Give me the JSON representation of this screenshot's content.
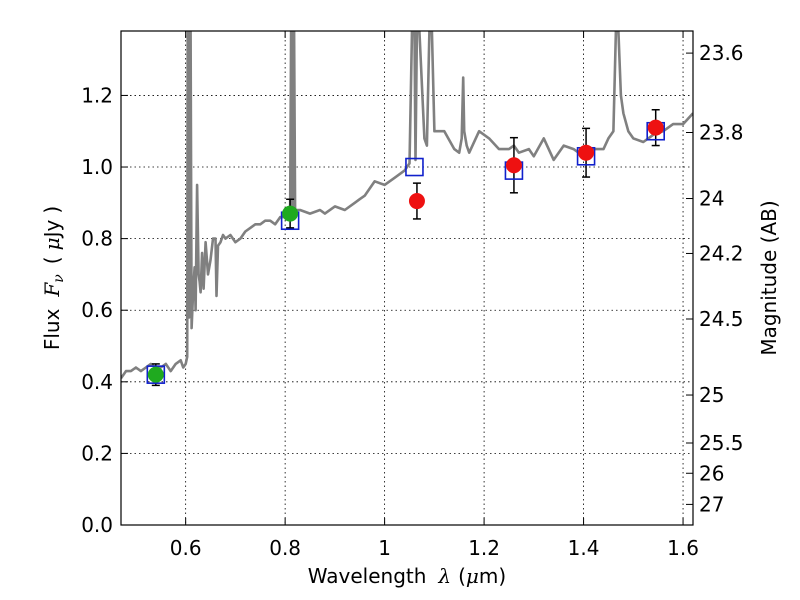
{
  "chart_data": {
    "type": "scatter",
    "xlabel_text": "Wavelength",
    "xlabel_symbol": "λ",
    "xlabel_unit_open": "(",
    "xlabel_unit_mu": "μ",
    "xlabel_unit_rest": "m)",
    "ylabel_text": "Flux",
    "ylabel_symbol": "F",
    "ylabel_sub": "ν",
    "ylabel_unit_open": "(",
    "ylabel_unit_mu": "μ",
    "ylabel_unit_rest": "Jy",
    "ylabel_unit_close": ")",
    "y2label": "Magnitude (AB)",
    "xlim": [
      0.47,
      1.62
    ],
    "ylim": [
      0.0,
      1.38
    ],
    "xticks": [
      0.6,
      0.8,
      1.0,
      1.2,
      1.4,
      1.6
    ],
    "xtick_labels": [
      "0.6",
      "0.8",
      "1",
      "1.2",
      "1.4",
      "1.6"
    ],
    "yticks": [
      0.0,
      0.2,
      0.4,
      0.6,
      0.8,
      1.0,
      1.2
    ],
    "ytick_labels": [
      "0.0",
      "0.2",
      "0.4",
      "0.6",
      "0.8",
      "1.0",
      "1.2"
    ],
    "y2ticks": [
      {
        "mag": 23.6,
        "label": "23.6"
      },
      {
        "mag": 23.8,
        "label": "23.8"
      },
      {
        "mag": 24.0,
        "label": "24"
      },
      {
        "mag": 24.2,
        "label": "24.2"
      },
      {
        "mag": 24.5,
        "label": "24.5"
      },
      {
        "mag": 25.0,
        "label": "25"
      },
      {
        "mag": 25.5,
        "label": "25.5"
      },
      {
        "mag": 26.0,
        "label": "26"
      },
      {
        "mag": 27.0,
        "label": "27"
      }
    ],
    "grid": true,
    "colors": {
      "spectrum": "#808080",
      "green": "#1faa1f",
      "red": "#ee1111",
      "model_box": "#1020cc",
      "errorbar": "#000000"
    },
    "spectrum": {
      "name": "model spectrum",
      "x": [
        0.47,
        0.48,
        0.49,
        0.5,
        0.51,
        0.52,
        0.53,
        0.54,
        0.55,
        0.56,
        0.57,
        0.58,
        0.59,
        0.595,
        0.6,
        0.603,
        0.604,
        0.606,
        0.6065,
        0.607,
        0.608,
        0.61,
        0.612,
        0.615,
        0.618,
        0.62,
        0.623,
        0.626,
        0.628,
        0.63,
        0.633,
        0.636,
        0.64,
        0.645,
        0.65,
        0.655,
        0.66,
        0.662,
        0.665,
        0.67,
        0.675,
        0.68,
        0.69,
        0.7,
        0.71,
        0.72,
        0.73,
        0.74,
        0.75,
        0.76,
        0.77,
        0.78,
        0.79,
        0.8,
        0.805,
        0.81,
        0.812,
        0.813,
        0.815,
        0.816,
        0.818,
        0.82,
        0.83,
        0.85,
        0.87,
        0.88,
        0.9,
        0.92,
        0.94,
        0.95,
        0.96,
        0.98,
        1.0,
        1.02,
        1.04,
        1.05,
        1.055,
        1.058,
        1.06,
        1.062,
        1.065,
        1.07,
        1.08,
        1.085,
        1.09,
        1.095,
        1.1,
        1.12,
        1.14,
        1.15,
        1.155,
        1.158,
        1.16,
        1.165,
        1.17,
        1.19,
        1.2,
        1.21,
        1.23,
        1.25,
        1.26,
        1.27,
        1.29,
        1.3,
        1.32,
        1.34,
        1.36,
        1.38,
        1.4,
        1.42,
        1.44,
        1.45,
        1.46,
        1.465,
        1.47,
        1.475,
        1.48,
        1.49,
        1.5,
        1.52,
        1.54,
        1.56,
        1.58,
        1.6,
        1.62
      ],
      "y": [
        0.41,
        0.43,
        0.43,
        0.44,
        0.43,
        0.44,
        0.45,
        0.44,
        0.44,
        0.45,
        0.43,
        0.45,
        0.46,
        0.44,
        0.45,
        0.47,
        1.38,
        1.38,
        0.62,
        0.58,
        1.38,
        1.38,
        0.55,
        0.65,
        0.72,
        0.6,
        0.95,
        0.7,
        0.68,
        0.65,
        0.76,
        0.66,
        0.79,
        0.7,
        0.74,
        0.8,
        0.8,
        0.64,
        0.78,
        0.79,
        0.81,
        0.8,
        0.81,
        0.79,
        0.8,
        0.82,
        0.83,
        0.84,
        0.84,
        0.85,
        0.85,
        0.84,
        0.86,
        0.86,
        0.87,
        0.86,
        1.38,
        1.38,
        0.88,
        1.38,
        1.38,
        0.88,
        0.88,
        0.87,
        0.88,
        0.87,
        0.89,
        0.88,
        0.9,
        0.91,
        0.92,
        0.96,
        0.95,
        0.97,
        0.99,
        1.01,
        1.38,
        1.38,
        1.38,
        1.02,
        1.38,
        1.38,
        1.08,
        1.06,
        1.38,
        1.38,
        1.1,
        1.1,
        1.05,
        1.04,
        1.08,
        1.25,
        1.1,
        1.06,
        1.04,
        1.1,
        1.09,
        1.08,
        1.05,
        1.05,
        1.06,
        1.04,
        1.05,
        1.03,
        1.08,
        1.02,
        1.06,
        1.05,
        1.03,
        1.05,
        1.05,
        1.08,
        1.1,
        1.38,
        1.38,
        1.2,
        1.15,
        1.1,
        1.08,
        1.07,
        1.09,
        1.1,
        1.12,
        1.12,
        1.15
      ]
    },
    "series": [
      {
        "name": "green points",
        "marker": "circle",
        "x": [
          0.54,
          0.81
        ],
        "y": [
          0.42,
          0.87
        ],
        "yerr": [
          0.03,
          0.04
        ]
      },
      {
        "name": "red points",
        "marker": "circle",
        "x": [
          1.065,
          1.26,
          1.405,
          1.545
        ],
        "y": [
          0.905,
          1.005,
          1.04,
          1.11
        ],
        "yerr": [
          0.05,
          0.077,
          0.068,
          0.05
        ]
      },
      {
        "name": "model photometry",
        "marker": "open-square",
        "x": [
          0.54,
          0.81,
          1.06,
          1.26,
          1.405,
          1.545
        ],
        "y": [
          0.42,
          0.85,
          1.0,
          0.99,
          1.03,
          1.1
        ]
      }
    ]
  }
}
